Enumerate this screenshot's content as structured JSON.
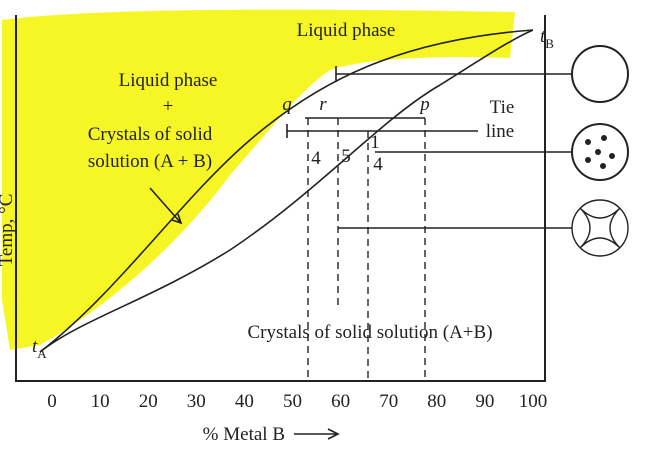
{
  "liquid_label": "Liquid phase",
  "mixed_region": [
    "Liquid phase",
    "+",
    "Crystals of solid",
    "solution (A + B)"
  ],
  "tie_line": [
    "Tie",
    "line"
  ],
  "points": {
    "q": "q",
    "r": "r",
    "p": "p"
  },
  "lever": [
    "4",
    "5",
    "1",
    "4"
  ],
  "solid_label": "Crystals of solid solution (A+B)",
  "t_a": {
    "base": "t",
    "sub": "A"
  },
  "t_b": {
    "base": "t",
    "sub": "B"
  },
  "x_axis": {
    "ticks": [
      0,
      10,
      20,
      30,
      40,
      50,
      60,
      70,
      80,
      90,
      100
    ],
    "label": "% Metal B"
  },
  "y_axis": {
    "label": "Temp, °C"
  }
}
